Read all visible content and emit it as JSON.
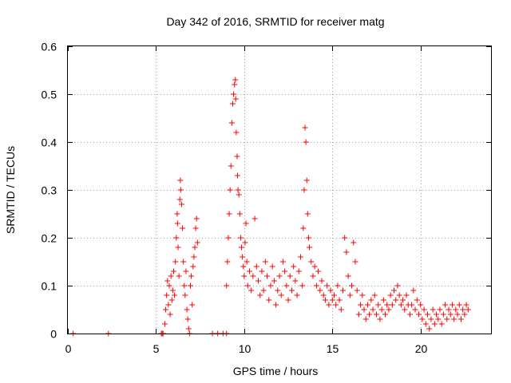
{
  "chart_data": {
    "type": "scatter",
    "title": "Day 342 of 2016, SRMTID for receiver matg",
    "xlabel": "GPS time / hours",
    "ylabel": "SRMTID / TECUs",
    "xlim": [
      0,
      24
    ],
    "ylim": [
      0,
      0.6
    ],
    "xticks": [
      0,
      5,
      10,
      15,
      20
    ],
    "yticks": [
      0,
      0.1,
      0.2,
      0.3,
      0.4,
      0.5,
      0.6
    ],
    "xtick_labels": [
      "0",
      "5",
      "10",
      "15",
      "20"
    ],
    "ytick_labels": [
      "0",
      "0.1",
      "0.2",
      "0.3",
      "0.4",
      "0.5",
      "0.6"
    ],
    "grid": true,
    "marker": "+",
    "color": "#ff0000",
    "series": [
      {
        "name": "SRMTID",
        "points": [
          [
            0.3,
            0.0
          ],
          [
            2.3,
            0.0
          ],
          [
            5.3,
            0.0
          ],
          [
            5.35,
            0.0
          ],
          [
            5.4,
            0.0
          ],
          [
            5.5,
            0.02
          ],
          [
            5.55,
            0.05
          ],
          [
            5.6,
            0.08
          ],
          [
            5.65,
            0.11
          ],
          [
            5.7,
            0.06
          ],
          [
            5.75,
            0.1
          ],
          [
            5.8,
            0.04
          ],
          [
            5.85,
            0.12
          ],
          [
            5.9,
            0.07
          ],
          [
            5.95,
            0.09
          ],
          [
            6.0,
            0.13
          ],
          [
            6.05,
            0.08
          ],
          [
            6.1,
            0.15
          ],
          [
            6.15,
            0.2
          ],
          [
            6.2,
            0.25
          ],
          [
            6.22,
            0.23
          ],
          [
            6.25,
            0.18
          ],
          [
            6.3,
            0.12
          ],
          [
            6.35,
            0.28
          ],
          [
            6.38,
            0.32
          ],
          [
            6.4,
            0.3
          ],
          [
            6.45,
            0.27
          ],
          [
            6.5,
            0.22
          ],
          [
            6.55,
            0.15
          ],
          [
            6.6,
            0.1
          ],
          [
            6.65,
            0.08
          ],
          [
            6.7,
            0.13
          ],
          [
            6.75,
            0.05
          ],
          [
            6.8,
            0.03
          ],
          [
            6.85,
            0.01
          ],
          [
            6.9,
            0.0
          ],
          [
            6.95,
            0.1
          ],
          [
            7.0,
            0.12
          ],
          [
            7.05,
            0.06
          ],
          [
            7.1,
            0.14
          ],
          [
            7.15,
            0.16
          ],
          [
            7.2,
            0.18
          ],
          [
            7.25,
            0.22
          ],
          [
            7.3,
            0.24
          ],
          [
            7.35,
            0.19
          ],
          [
            8.2,
            0.0
          ],
          [
            8.5,
            0.0
          ],
          [
            8.8,
            0.0
          ],
          [
            9.0,
            0.0
          ],
          [
            9.0,
            0.1
          ],
          [
            9.05,
            0.15
          ],
          [
            9.1,
            0.2
          ],
          [
            9.15,
            0.25
          ],
          [
            9.2,
            0.3
          ],
          [
            9.25,
            0.35
          ],
          [
            9.3,
            0.44
          ],
          [
            9.35,
            0.48
          ],
          [
            9.4,
            0.5
          ],
          [
            9.45,
            0.52
          ],
          [
            9.5,
            0.53
          ],
          [
            9.52,
            0.49
          ],
          [
            9.55,
            0.42
          ],
          [
            9.6,
            0.37
          ],
          [
            9.62,
            0.33
          ],
          [
            9.65,
            0.3
          ],
          [
            9.7,
            0.29
          ],
          [
            9.75,
            0.25
          ],
          [
            9.8,
            0.2
          ],
          [
            9.85,
            0.18
          ],
          [
            9.9,
            0.16
          ],
          [
            9.95,
            0.14
          ],
          [
            10.0,
            0.12
          ],
          [
            10.05,
            0.19
          ],
          [
            10.1,
            0.23
          ],
          [
            10.15,
            0.15
          ],
          [
            10.2,
            0.1
          ],
          [
            10.3,
            0.13
          ],
          [
            10.4,
            0.09
          ],
          [
            10.5,
            0.12
          ],
          [
            10.6,
            0.24
          ],
          [
            10.7,
            0.14
          ],
          [
            10.8,
            0.11
          ],
          [
            10.9,
            0.08
          ],
          [
            11.0,
            0.13
          ],
          [
            11.1,
            0.09
          ],
          [
            11.2,
            0.15
          ],
          [
            11.3,
            0.12
          ],
          [
            11.4,
            0.07
          ],
          [
            11.5,
            0.1
          ],
          [
            11.6,
            0.14
          ],
          [
            11.7,
            0.11
          ],
          [
            11.8,
            0.06
          ],
          [
            11.9,
            0.09
          ],
          [
            12.0,
            0.12
          ],
          [
            12.1,
            0.08
          ],
          [
            12.2,
            0.15
          ],
          [
            12.3,
            0.13
          ],
          [
            12.4,
            0.1
          ],
          [
            12.5,
            0.07
          ],
          [
            12.6,
            0.12
          ],
          [
            12.7,
            0.09
          ],
          [
            12.8,
            0.14
          ],
          [
            12.9,
            0.11
          ],
          [
            13.0,
            0.08
          ],
          [
            13.1,
            0.13
          ],
          [
            13.2,
            0.16
          ],
          [
            13.3,
            0.1
          ],
          [
            13.35,
            0.22
          ],
          [
            13.4,
            0.3
          ],
          [
            13.45,
            0.43
          ],
          [
            13.5,
            0.4
          ],
          [
            13.55,
            0.32
          ],
          [
            13.6,
            0.25
          ],
          [
            13.65,
            0.2
          ],
          [
            13.7,
            0.18
          ],
          [
            13.8,
            0.15
          ],
          [
            13.9,
            0.12
          ],
          [
            14.0,
            0.14
          ],
          [
            14.1,
            0.1
          ],
          [
            14.2,
            0.13
          ],
          [
            14.3,
            0.09
          ],
          [
            14.4,
            0.11
          ],
          [
            14.5,
            0.08
          ],
          [
            14.6,
            0.07
          ],
          [
            14.7,
            0.1
          ],
          [
            14.8,
            0.06
          ],
          [
            14.9,
            0.09
          ],
          [
            15.0,
            0.07
          ],
          [
            15.1,
            0.08
          ],
          [
            15.2,
            0.06
          ],
          [
            15.3,
            0.1
          ],
          [
            15.4,
            0.07
          ],
          [
            15.5,
            0.05
          ],
          [
            15.6,
            0.09
          ],
          [
            15.7,
            0.2
          ],
          [
            15.8,
            0.17
          ],
          [
            15.9,
            0.12
          ],
          [
            16.0,
            0.08
          ],
          [
            16.1,
            0.1
          ],
          [
            16.2,
            0.19
          ],
          [
            16.3,
            0.15
          ],
          [
            16.4,
            0.09
          ],
          [
            16.5,
            0.04
          ],
          [
            16.6,
            0.06
          ],
          [
            16.7,
            0.08
          ],
          [
            16.8,
            0.05
          ],
          [
            16.9,
            0.03
          ],
          [
            17.0,
            0.06
          ],
          [
            17.1,
            0.04
          ],
          [
            17.2,
            0.07
          ],
          [
            17.3,
            0.05
          ],
          [
            17.4,
            0.08
          ],
          [
            17.5,
            0.04
          ],
          [
            17.6,
            0.06
          ],
          [
            17.7,
            0.03
          ],
          [
            17.8,
            0.05
          ],
          [
            17.9,
            0.07
          ],
          [
            18.0,
            0.04
          ],
          [
            18.1,
            0.06
          ],
          [
            18.2,
            0.05
          ],
          [
            18.3,
            0.08
          ],
          [
            18.4,
            0.06
          ],
          [
            18.5,
            0.09
          ],
          [
            18.6,
            0.07
          ],
          [
            18.7,
            0.1
          ],
          [
            18.8,
            0.08
          ],
          [
            18.9,
            0.06
          ],
          [
            19.0,
            0.07
          ],
          [
            19.1,
            0.05
          ],
          [
            19.2,
            0.08
          ],
          [
            19.3,
            0.06
          ],
          [
            19.4,
            0.04
          ],
          [
            19.5,
            0.06
          ],
          [
            19.6,
            0.09
          ],
          [
            19.7,
            0.05
          ],
          [
            19.8,
            0.07
          ],
          [
            19.9,
            0.04
          ],
          [
            20.0,
            0.06
          ],
          [
            20.1,
            0.03
          ],
          [
            20.2,
            0.05
          ],
          [
            20.3,
            0.02
          ],
          [
            20.4,
            0.04
          ],
          [
            20.5,
            0.01
          ],
          [
            20.6,
            0.03
          ],
          [
            20.7,
            0.05
          ],
          [
            20.8,
            0.02
          ],
          [
            20.9,
            0.04
          ],
          [
            21.0,
            0.03
          ],
          [
            21.1,
            0.05
          ],
          [
            21.2,
            0.02
          ],
          [
            21.3,
            0.04
          ],
          [
            21.4,
            0.06
          ],
          [
            21.5,
            0.03
          ],
          [
            21.6,
            0.05
          ],
          [
            21.7,
            0.04
          ],
          [
            21.8,
            0.06
          ],
          [
            21.9,
            0.03
          ],
          [
            22.0,
            0.05
          ],
          [
            22.1,
            0.04
          ],
          [
            22.2,
            0.06
          ],
          [
            22.3,
            0.03
          ],
          [
            22.4,
            0.05
          ],
          [
            22.5,
            0.04
          ],
          [
            22.6,
            0.06
          ],
          [
            22.7,
            0.05
          ]
        ]
      }
    ]
  }
}
